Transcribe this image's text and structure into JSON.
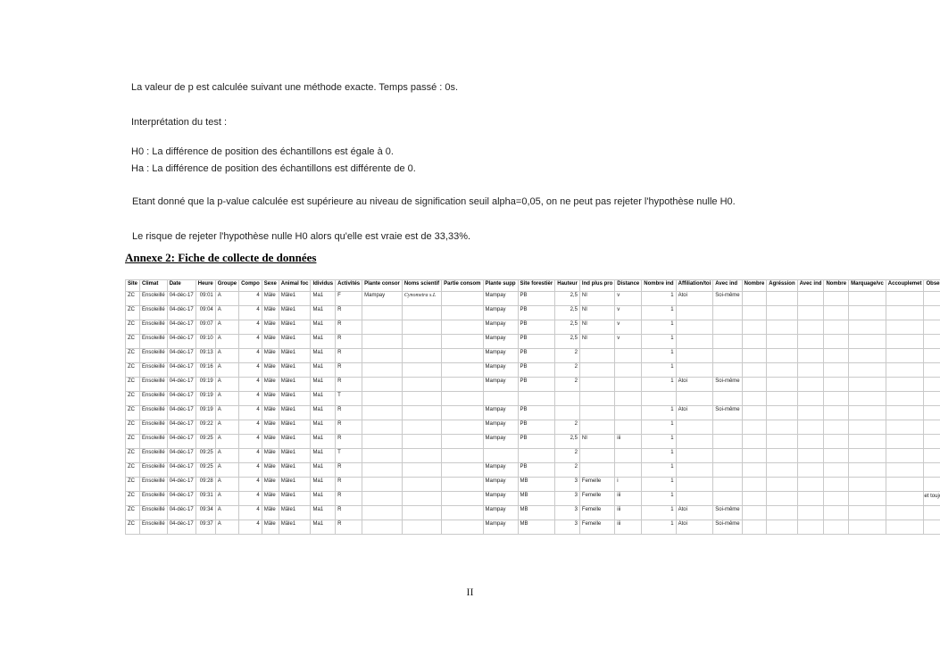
{
  "page": {
    "paragraphs": {
      "p_value": "La valeur de p est calculée suivant une méthode exacte. Temps passé : 0s.",
      "interpretation_title": "Interprétation du test :",
      "h0": "H0 : La différence de position des échantillons est égale à 0.",
      "ha": "Ha : La différence de position des échantillons est différente de 0.",
      "conclusion": "Etant donné que la p-value calculée est supérieure au niveau de signification seuil alpha=0,05, on ne peut pas rejeter l'hypothèse nulle H0.",
      "risk": "Le risque de rejeter l'hypothèse nulle H0 alors qu'elle est vraie est de 33,33%."
    },
    "heading": "Annexe 2: Fiche de collecte de données",
    "page_number": "II"
  },
  "table": {
    "headers": [
      "Site",
      "Climat",
      "Date",
      "Heure",
      "Groupe",
      "Compo",
      "Sexe",
      "Animal foc",
      "Idividus",
      "Activités",
      "Plante consor",
      "Noms scientif",
      "Partie consom",
      "Plante supp",
      "Site forestièr",
      "Hauteur",
      "Ind plus pro",
      "Distance",
      "Nombre ind",
      "Affiliation/toi",
      "Avec ind",
      "Nombre",
      "Agréssion",
      "Avec ind",
      "Nombre",
      "Marquage/vc",
      "Accouplemet",
      "Observation"
    ],
    "rows": [
      [
        "ZC",
        "Ensoleillé",
        "04-déc-17",
        "09:01",
        "A",
        "4",
        "Mâle",
        "Mâle1",
        "Ma1",
        "F",
        "Mampay",
        "Cynometra s.L",
        "",
        "Mampay",
        "PB",
        "2,5",
        "NI",
        "v",
        "1",
        "Atoi",
        "Soi-même",
        "",
        "",
        "",
        "",
        "",
        "",
        ""
      ],
      [
        "ZC",
        "Ensoleillé",
        "04-déc-17",
        "09:04",
        "A",
        "4",
        "Mâle",
        "Mâle1",
        "Ma1",
        "R",
        "",
        "",
        "",
        "Mampay",
        "PB",
        "2,5",
        "NI",
        "v",
        "1",
        "",
        "",
        "",
        "",
        "",
        "",
        "",
        "",
        ""
      ],
      [
        "ZC",
        "Ensoleillé",
        "04-déc-17",
        "09:07",
        "A",
        "4",
        "Mâle",
        "Mâle1",
        "Ma1",
        "R",
        "",
        "",
        "",
        "Mampay",
        "PB",
        "2,5",
        "NI",
        "v",
        "1",
        "",
        "",
        "",
        "",
        "",
        "",
        "",
        "",
        ""
      ],
      [
        "ZC",
        "Ensoleillé",
        "04-déc-17",
        "09:10",
        "A",
        "4",
        "Mâle",
        "Mâle1",
        "Ma1",
        "R",
        "",
        "",
        "",
        "Mampay",
        "PB",
        "2,5",
        "NI",
        "v",
        "1",
        "",
        "",
        "",
        "",
        "",
        "",
        "",
        "",
        ""
      ],
      [
        "ZC",
        "Ensoleillé",
        "04-déc-17",
        "09:13",
        "A",
        "4",
        "Mâle",
        "Mâle1",
        "Ma1",
        "R",
        "",
        "",
        "",
        "Mampay",
        "PB",
        "2",
        "",
        "",
        "1",
        "",
        "",
        "",
        "",
        "",
        "",
        "",
        "",
        ""
      ],
      [
        "ZC",
        "Ensoleillé",
        "04-déc-17",
        "09:16",
        "A",
        "4",
        "Mâle",
        "Mâle1",
        "Ma1",
        "R",
        "",
        "",
        "",
        "Mampay",
        "PB",
        "2",
        "",
        "",
        "1",
        "",
        "",
        "",
        "",
        "",
        "",
        "",
        "",
        ""
      ],
      [
        "ZC",
        "Ensoleillé",
        "04-déc-17",
        "09:19",
        "A",
        "4",
        "Mâle",
        "Mâle1",
        "Ma1",
        "R",
        "",
        "",
        "",
        "Mampay",
        "PB",
        "2",
        "",
        "",
        "1",
        "Atoi",
        "Soi-même",
        "",
        "",
        "",
        "",
        "",
        "",
        ""
      ],
      [
        "ZC",
        "Ensoleillé",
        "04-déc-17",
        "09:19",
        "A",
        "4",
        "Mâle",
        "Mâle1",
        "Ma1",
        "T",
        "",
        "",
        "",
        "",
        "",
        "",
        "",
        "",
        "",
        "",
        "",
        "",
        "",
        "",
        "",
        "",
        "",
        ""
      ],
      [
        "ZC",
        "Ensoleillé",
        "04-déc-17",
        "09:19",
        "A",
        "4",
        "Mâle",
        "Mâle1",
        "Ma1",
        "R",
        "",
        "",
        "",
        "Mampay",
        "PB",
        "",
        "",
        "",
        "1",
        "Atoi",
        "Soi-même",
        "",
        "",
        "",
        "",
        "",
        "",
        ""
      ],
      [
        "ZC",
        "Ensoleillé",
        "04-déc-17",
        "09:22",
        "A",
        "4",
        "Mâle",
        "Mâle1",
        "Ma1",
        "R",
        "",
        "",
        "",
        "Mampay",
        "PB",
        "2",
        "",
        "",
        "1",
        "",
        "",
        "",
        "",
        "",
        "",
        "",
        "",
        ""
      ],
      [
        "ZC",
        "Ensoleillé",
        "04-déc-17",
        "09:25",
        "A",
        "4",
        "Mâle",
        "Mâle1",
        "Ma1",
        "R",
        "",
        "",
        "",
        "Mampay",
        "PB",
        "2,5",
        "NI",
        "iii",
        "1",
        "",
        "",
        "",
        "",
        "",
        "",
        "",
        "",
        ""
      ],
      [
        "ZC",
        "Ensoleillé",
        "04-déc-17",
        "09:25",
        "A",
        "4",
        "Mâle",
        "Mâle1",
        "Ma1",
        "T",
        "",
        "",
        "",
        "",
        "",
        "2",
        "",
        "",
        "1",
        "",
        "",
        "",
        "",
        "",
        "",
        "",
        "",
        ""
      ],
      [
        "ZC",
        "Ensoleillé",
        "04-déc-17",
        "09:25",
        "A",
        "4",
        "Mâle",
        "Mâle1",
        "Ma1",
        "R",
        "",
        "",
        "",
        "Mampay",
        "PB",
        "2",
        "",
        "",
        "1",
        "",
        "",
        "",
        "",
        "",
        "",
        "",
        "",
        ""
      ],
      [
        "ZC",
        "Ensoleillé",
        "04-déc-17",
        "09:28",
        "A",
        "4",
        "Mâle",
        "Mâle1",
        "Ma1",
        "R",
        "",
        "",
        "",
        "Mampay",
        "MB",
        "3",
        "Femelle",
        "i",
        "1",
        "",
        "",
        "",
        "",
        "",
        "",
        "",
        "",
        ""
      ],
      [
        "ZC",
        "Ensoleillé",
        "04-déc-17",
        "09:31",
        "A",
        "4",
        "Mâle",
        "Mâle1",
        "Ma1",
        "R",
        "",
        "",
        "",
        "Mampay",
        "MB",
        "3",
        "Femelle",
        "iii",
        "1",
        "",
        "",
        "",
        "",
        "",
        "",
        "",
        "",
        "Le mâle se met toujours à o"
      ],
      [
        "ZC",
        "Ensoleillé",
        "04-déc-17",
        "09:34",
        "A",
        "4",
        "Mâle",
        "Mâle1",
        "Ma1",
        "R",
        "",
        "",
        "",
        "Mampay",
        "MB",
        "3",
        "Femelle",
        "iii",
        "1",
        "Atoi",
        "Soi-même",
        "",
        "",
        "",
        "",
        "",
        "",
        ""
      ],
      [
        "ZC",
        "Ensoleillé",
        "04-déc-17",
        "09:37",
        "A",
        "4",
        "Mâle",
        "Mâle1",
        "Ma1",
        "R",
        "",
        "",
        "",
        "Mampay",
        "MB",
        "3",
        "Femelle",
        "iii",
        "1",
        "Atoi",
        "Soi-même",
        "",
        "",
        "",
        "",
        "",
        "",
        ""
      ]
    ]
  }
}
